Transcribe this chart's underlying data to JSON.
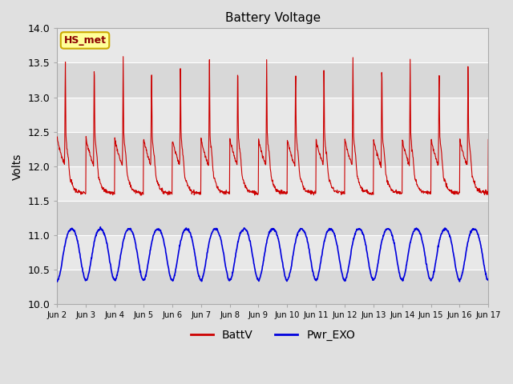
{
  "title": "Battery Voltage",
  "ylabel": "Volts",
  "ylim": [
    10.0,
    14.0
  ],
  "yticks": [
    10.0,
    10.5,
    11.0,
    11.5,
    12.0,
    12.5,
    13.0,
    13.5,
    14.0
  ],
  "xtick_labels": [
    "Jun 2",
    "Jun 3",
    "Jun 4",
    "Jun 5",
    "Jun 6",
    "Jun 7",
    "Jun 8",
    "Jun 9",
    "Jun 10",
    "Jun 11",
    "Jun 12",
    "Jun 13",
    "Jun 14",
    "Jun 15",
    "Jun 16",
    "Jun 17"
  ],
  "outer_bg": "#e0e0e0",
  "plot_bg_light": "#e8e8e8",
  "plot_bg_dark": "#d8d8d8",
  "red_line_color": "#cc0000",
  "blue_line_color": "#0000dd",
  "annotation_text": "HS_met",
  "annotation_bg": "#ffff99",
  "annotation_border": "#ccaa00",
  "legend_items": [
    "BattV",
    "Pwr_EXO"
  ],
  "legend_colors": [
    "#cc0000",
    "#0000dd"
  ],
  "n_days": 15,
  "pts_per_day": 96
}
